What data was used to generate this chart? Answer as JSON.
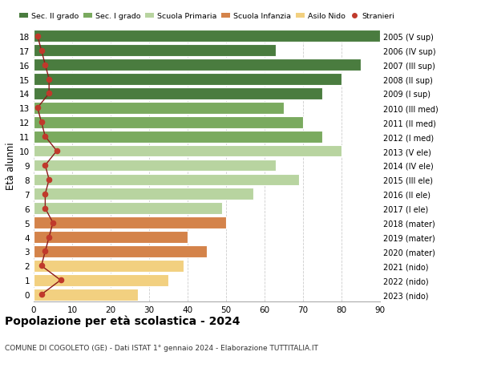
{
  "ages": [
    18,
    17,
    16,
    15,
    14,
    13,
    12,
    11,
    10,
    9,
    8,
    7,
    6,
    5,
    4,
    3,
    2,
    1,
    0
  ],
  "right_labels": [
    "2005 (V sup)",
    "2006 (IV sup)",
    "2007 (III sup)",
    "2008 (II sup)",
    "2009 (I sup)",
    "2010 (III med)",
    "2011 (II med)",
    "2012 (I med)",
    "2013 (V ele)",
    "2014 (IV ele)",
    "2015 (III ele)",
    "2016 (II ele)",
    "2017 (I ele)",
    "2018 (mater)",
    "2019 (mater)",
    "2020 (mater)",
    "2021 (nido)",
    "2022 (nido)",
    "2023 (nido)"
  ],
  "values": [
    90,
    63,
    85,
    80,
    75,
    65,
    70,
    75,
    80,
    63,
    69,
    57,
    49,
    50,
    40,
    45,
    39,
    35,
    27
  ],
  "stranieri": [
    1,
    2,
    3,
    4,
    4,
    1,
    2,
    3,
    6,
    3,
    4,
    3,
    3,
    5,
    4,
    3,
    2,
    7,
    2
  ],
  "bar_colors": [
    "#4a7c3f",
    "#4a7c3f",
    "#4a7c3f",
    "#4a7c3f",
    "#4a7c3f",
    "#7aaa5f",
    "#7aaa5f",
    "#7aaa5f",
    "#b8d4a0",
    "#b8d4a0",
    "#b8d4a0",
    "#b8d4a0",
    "#b8d4a0",
    "#d4834a",
    "#d4834a",
    "#d4834a",
    "#f2d080",
    "#f2d080",
    "#f2d080"
  ],
  "legend_labels": [
    "Sec. II grado",
    "Sec. I grado",
    "Scuola Primaria",
    "Scuola Infanzia",
    "Asilo Nido",
    "Stranieri"
  ],
  "legend_colors": [
    "#4a7c3f",
    "#7aaa5f",
    "#b8d4a0",
    "#d4834a",
    "#f2d080",
    "#c0392b"
  ],
  "title": "Popolazione per età scolastica - 2024",
  "subtitle": "COMUNE DI COGOLETO (GE) - Dati ISTAT 1° gennaio 2024 - Elaborazione TUTTITALIA.IT",
  "ylabel": "Età alunni",
  "xlim": [
    0,
    90
  ],
  "xticks": [
    0,
    10,
    20,
    30,
    40,
    50,
    60,
    70,
    80,
    90
  ],
  "bg_color": "#ffffff",
  "grid_color": "#cccccc",
  "stranieri_color": "#c0392b",
  "stranieri_line_color": "#8b1a1a"
}
